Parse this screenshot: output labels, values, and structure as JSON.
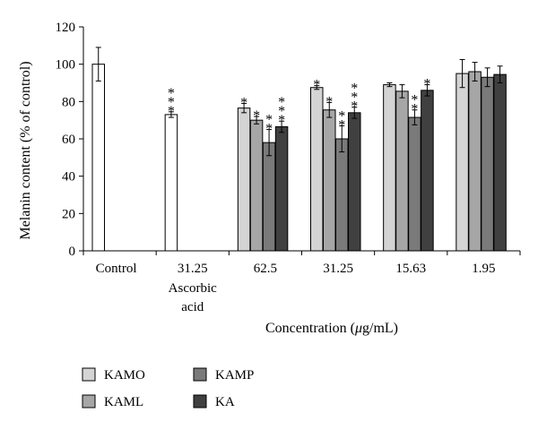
{
  "chart_data": {
    "type": "bar",
    "ylabel": "Melanin content (% of control)",
    "xlabel": "Concentration (μg/mL)",
    "ylim": [
      0,
      120
    ],
    "yticks": [
      0,
      20,
      40,
      60,
      80,
      100,
      120
    ],
    "grid": false,
    "legend_position": "bottom-left",
    "groups": [
      {
        "label": "Control",
        "sublabel": "",
        "bars": [
          {
            "series": "Control",
            "value": 100,
            "error": 9,
            "sig": ""
          }
        ]
      },
      {
        "label": "31.25",
        "sublabel": "Ascorbic acid",
        "bars": [
          {
            "series": "Ascorbic acid",
            "value": 73,
            "error": 1.5,
            "sig": "***"
          }
        ]
      },
      {
        "label": "62.5",
        "sublabel": "",
        "bars": [
          {
            "series": "KAMO",
            "value": 76.5,
            "error": 2.5,
            "sig": "*"
          },
          {
            "series": "KAML",
            "value": 70,
            "error": 2,
            "sig": "*"
          },
          {
            "series": "KAMP",
            "value": 58,
            "error": 7,
            "sig": "**"
          },
          {
            "series": "KA",
            "value": 66.5,
            "error": 3,
            "sig": "***"
          }
        ]
      },
      {
        "label": "31.25",
        "sublabel": "",
        "bars": [
          {
            "series": "KAMO",
            "value": 87.5,
            "error": 1,
            "sig": "*"
          },
          {
            "series": "KAML",
            "value": 75.5,
            "error": 4,
            "sig": "*"
          },
          {
            "series": "KAMP",
            "value": 60,
            "error": 7,
            "sig": "**"
          },
          {
            "series": "KA",
            "value": 74,
            "error": 3,
            "sig": "***"
          }
        ]
      },
      {
        "label": "15.63",
        "sublabel": "",
        "bars": [
          {
            "series": "KAMO",
            "value": 89,
            "error": 1,
            "sig": ""
          },
          {
            "series": "KAML",
            "value": 85.5,
            "error": 3.5,
            "sig": ""
          },
          {
            "series": "KAMP",
            "value": 71.5,
            "error": 4,
            "sig": "**"
          },
          {
            "series": "KA",
            "value": 86,
            "error": 3,
            "sig": "*"
          }
        ]
      },
      {
        "label": "1.95",
        "sublabel": "",
        "bars": [
          {
            "series": "KAMO",
            "value": 95,
            "error": 7.5,
            "sig": ""
          },
          {
            "series": "KAML",
            "value": 96,
            "error": 5,
            "sig": ""
          },
          {
            "series": "KAMP",
            "value": 93,
            "error": 5,
            "sig": ""
          },
          {
            "series": "KA",
            "value": 94.5,
            "error": 4.5,
            "sig": ""
          }
        ]
      }
    ],
    "series_colors": {
      "Control": "#ffffff",
      "Ascorbic acid": "#ffffff",
      "KAMO": "#d4d4d4",
      "KAML": "#a6a6a6",
      "KAMP": "#7a7a7a",
      "KA": "#404040"
    },
    "legend": [
      {
        "name": "KAMO",
        "color": "#d4d4d4"
      },
      {
        "name": "KAML",
        "color": "#a6a6a6"
      },
      {
        "name": "KAMP",
        "color": "#7a7a7a"
      },
      {
        "name": "KA",
        "color": "#404040"
      }
    ]
  }
}
